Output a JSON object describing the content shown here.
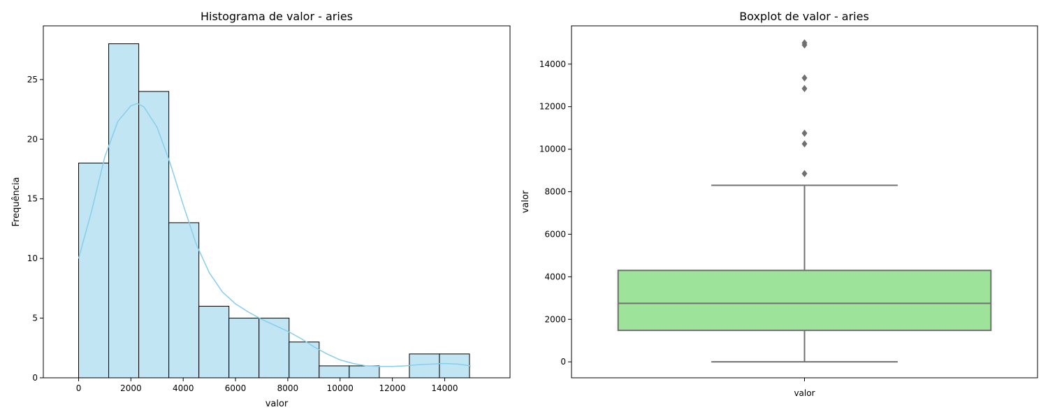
{
  "chart_data": [
    {
      "type": "histogram",
      "title": "Histograma de valor - aries",
      "xlabel": "valor",
      "ylabel": "Frequência",
      "xlim": [
        -1350,
        16500
      ],
      "ylim": [
        0,
        29.5
      ],
      "xticks": [
        0,
        2000,
        4000,
        6000,
        8000,
        10000,
        12000,
        14000
      ],
      "yticks": [
        0,
        5,
        10,
        15,
        20,
        25
      ],
      "bin_edges": [
        0,
        1150,
        2300,
        3450,
        4600,
        5750,
        6900,
        8050,
        9200,
        10350,
        11500,
        12650,
        13800,
        14950
      ],
      "counts": [
        18,
        28,
        24,
        13,
        6,
        5,
        5,
        3,
        1,
        1,
        0,
        2,
        2
      ],
      "bar_color": "#c2e5f4",
      "edge_color": "#000000",
      "kde": {
        "color": "#87ceeb",
        "x": [
          0,
          500,
          1000,
          1500,
          2000,
          2250,
          2500,
          3000,
          3500,
          4000,
          4500,
          5000,
          5500,
          6000,
          6500,
          7000,
          7500,
          8000,
          8500,
          9000,
          9500,
          10000,
          10500,
          11000,
          11500,
          12000,
          12500,
          13000,
          13500,
          14000,
          14500,
          15000
        ],
        "y": [
          10,
          14,
          18.5,
          21.5,
          22.8,
          23,
          22.7,
          21,
          18,
          14.5,
          11.2,
          8.8,
          7.2,
          6.2,
          5.5,
          4.9,
          4.4,
          3.9,
          3.3,
          2.6,
          2,
          1.5,
          1.2,
          1,
          0.95,
          0.95,
          1,
          1.1,
          1.15,
          1.2,
          1.15,
          1
        ]
      }
    },
    {
      "type": "box",
      "title": "Boxplot de valor - aries",
      "xlabel": "valor",
      "ylabel": "valor",
      "category": "valor",
      "ylim": [
        -750,
        15800
      ],
      "yticks": [
        0,
        2000,
        4000,
        6000,
        8000,
        10000,
        12000,
        14000
      ],
      "whisker_low": 0,
      "q1": 1480,
      "median": 2750,
      "q3": 4300,
      "whisker_high": 8300,
      "outliers": [
        8850,
        10250,
        10750,
        12850,
        13350,
        14900,
        15000
      ],
      "box_color": "#9de39a",
      "line_color": "#707070"
    }
  ]
}
